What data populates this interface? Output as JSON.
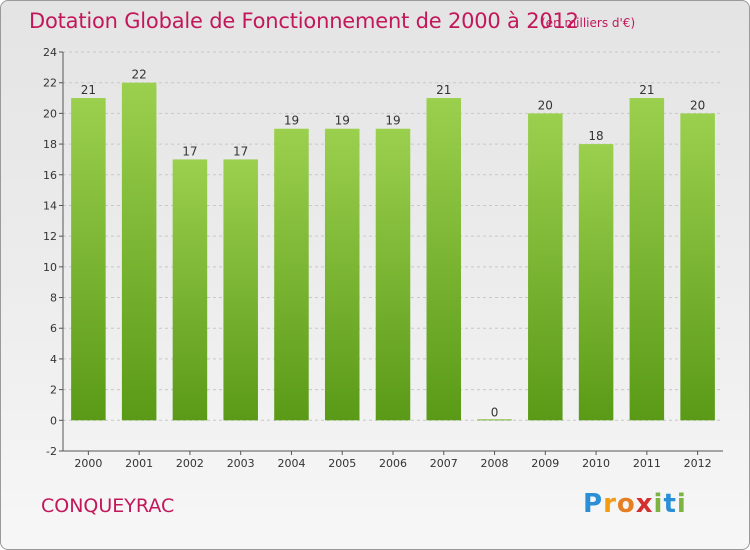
{
  "header": {
    "title": "Dotation Globale de Fonctionnement de 2000 à 2012",
    "subtitle": "(en milliers d'€)"
  },
  "commune": "CONQUEYRAC",
  "logo": {
    "text": "Proxiti"
  },
  "colors": {
    "bar_top": "#9bd04e",
    "bar_bottom": "#5a9a17",
    "title": "#c2185b"
  },
  "chart_data": {
    "type": "bar",
    "title": "Dotation Globale de Fonctionnement de 2000 à 2012",
    "subtitle": "(en milliers d'€)",
    "categories": [
      "2000",
      "2001",
      "2002",
      "2003",
      "2004",
      "2005",
      "2006",
      "2007",
      "2008",
      "2009",
      "2010",
      "2011",
      "2012"
    ],
    "values": [
      21,
      22,
      17,
      17,
      19,
      19,
      19,
      21,
      0,
      20,
      18,
      21,
      20
    ],
    "ylim": [
      -2,
      24
    ],
    "yticks": [
      -2,
      0,
      2,
      4,
      6,
      8,
      10,
      12,
      14,
      16,
      18,
      20,
      22,
      24
    ],
    "grid": true,
    "legend": "none"
  }
}
